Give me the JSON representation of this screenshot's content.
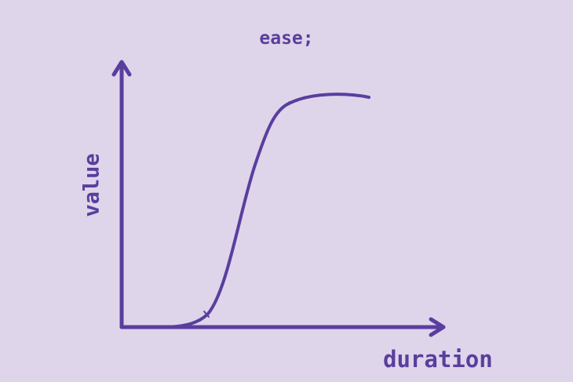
{
  "title": "ease;",
  "axes": {
    "x_label": "duration",
    "y_label": "value"
  },
  "colors": {
    "background": "#ded5ea",
    "stroke": "#5a3e9e"
  },
  "curve": {
    "timing_function": "ease",
    "control_points": [
      0.25,
      0.1,
      0.25,
      1.0
    ]
  }
}
